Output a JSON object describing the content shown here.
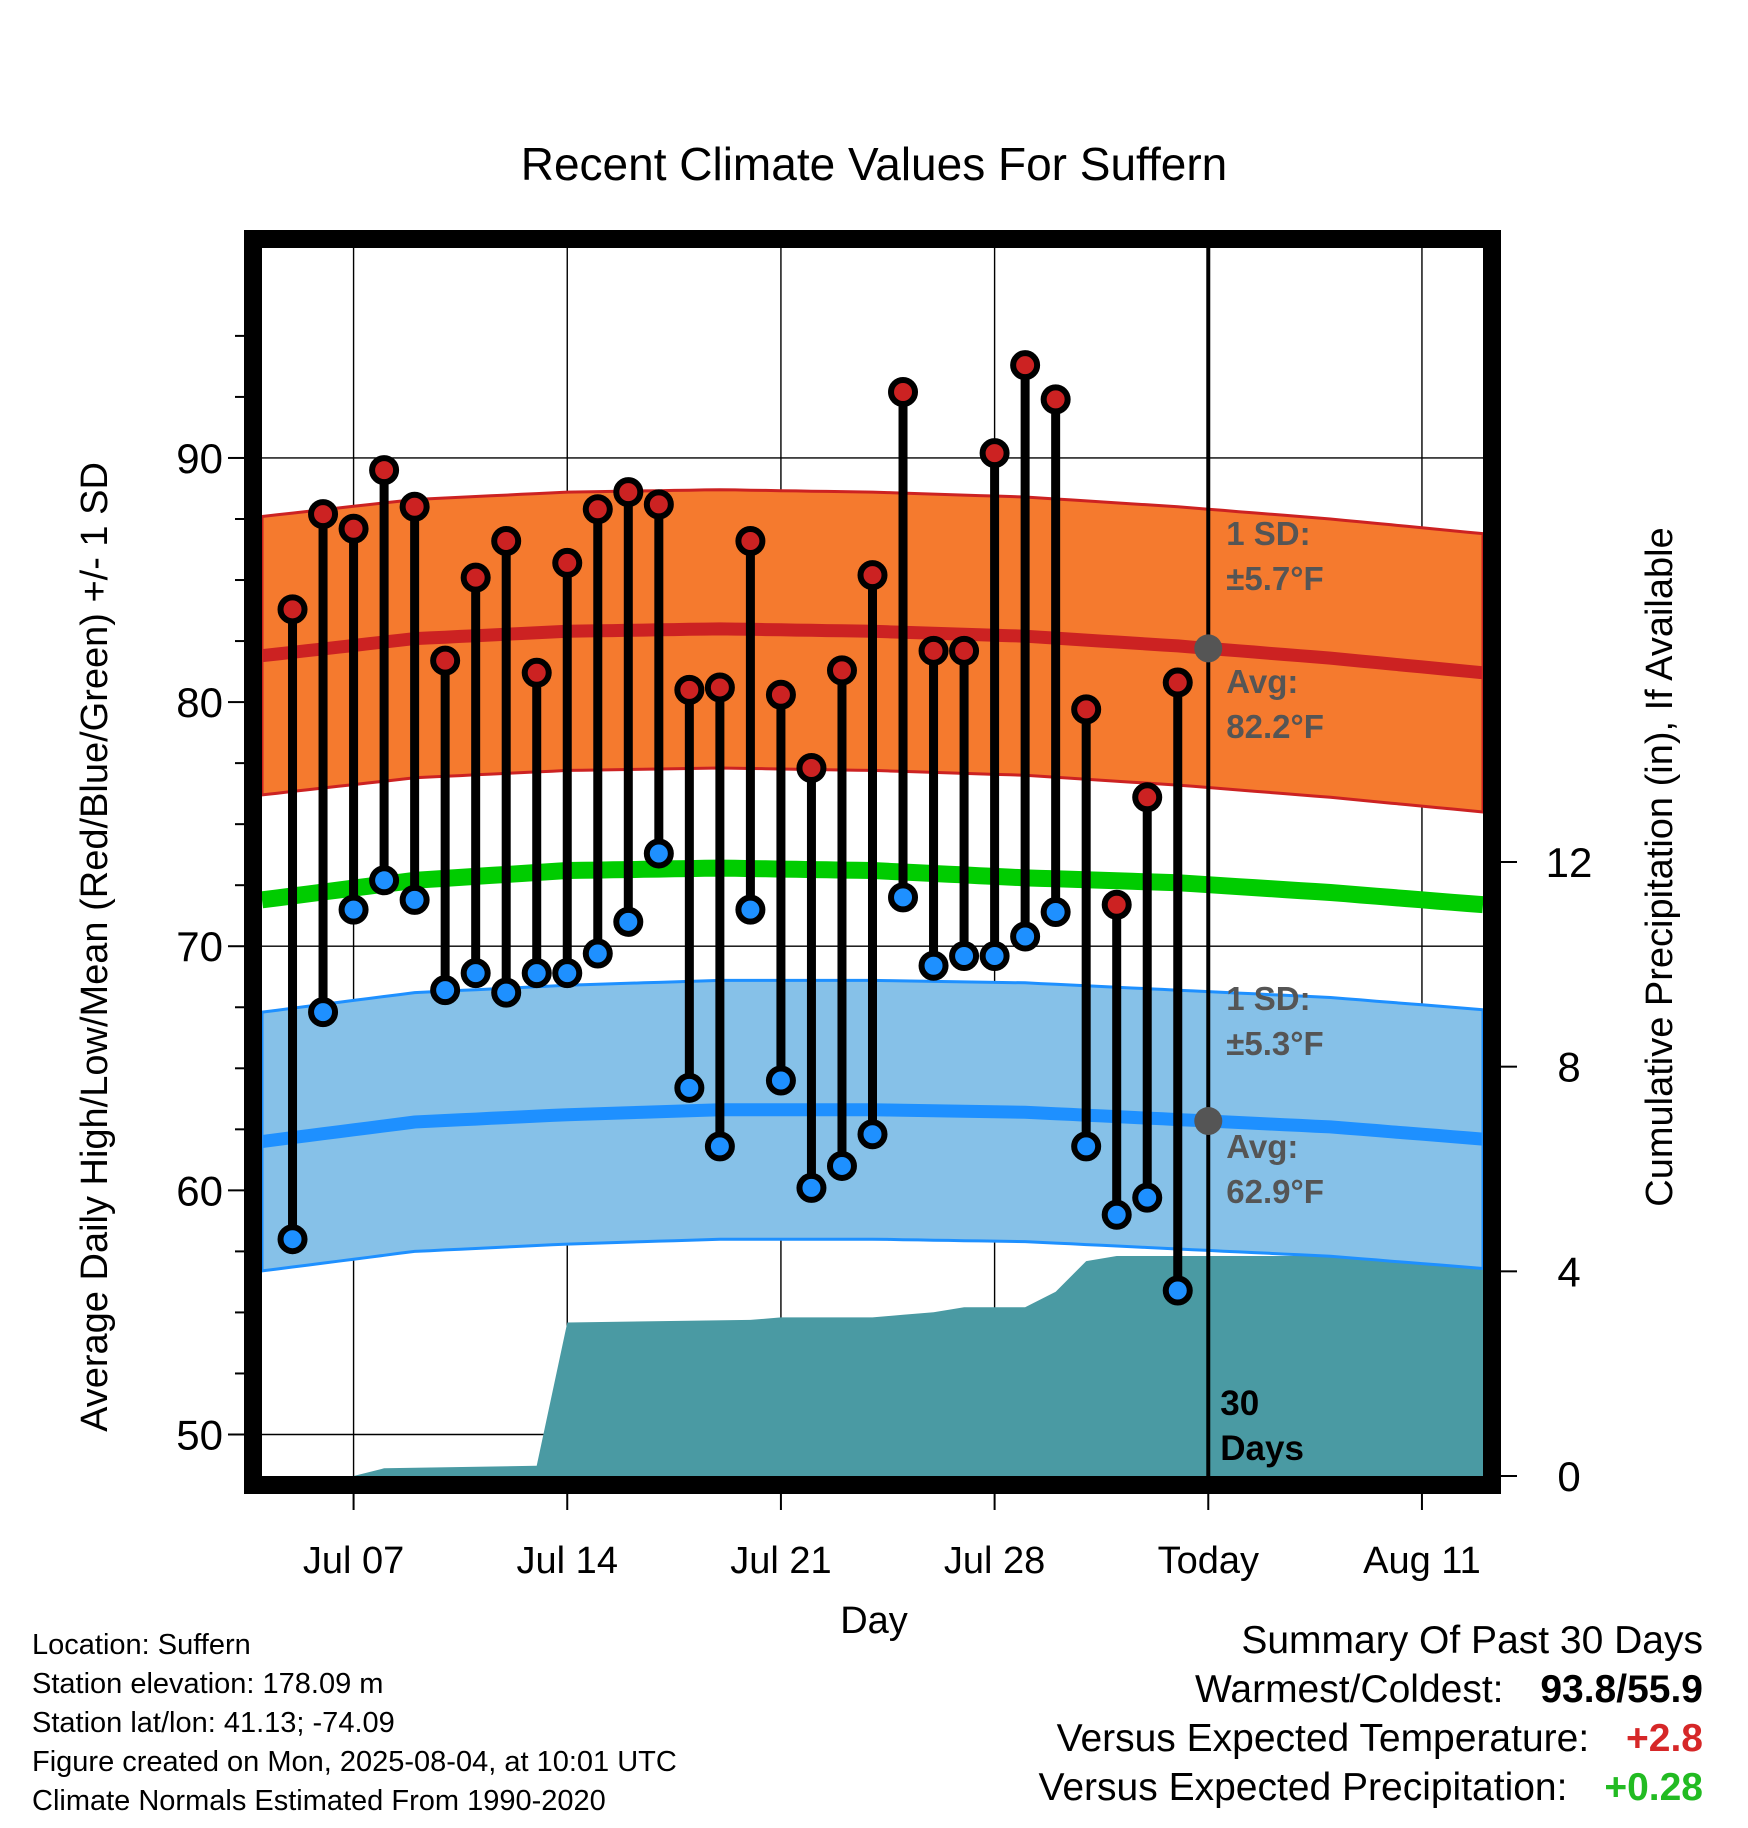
{
  "chart_data": {
    "type": "line",
    "title": "Recent Climate Values For Suffern",
    "xlabel": "Day",
    "ylabel": "Average Daily High/Low/Mean (Red/Blue/Green) +/- 1 SD",
    "y2label": "Cumulative Precipitation (in), If Available",
    "x_tick_labels": [
      "Jul 07",
      "Jul 14",
      "Jul 21",
      "Jul 28",
      "Today",
      "Aug 11"
    ],
    "y_ticks": [
      50,
      60,
      70,
      80,
      90
    ],
    "y2_ticks": [
      0,
      4,
      8,
      12
    ],
    "ylim": [
      48.3,
      98.6
    ],
    "y2lim": [
      0,
      24
    ],
    "xlim": [
      "Jul 04",
      "Aug 13"
    ],
    "grid": true,
    "dates": [
      "Jul 05",
      "Jul 06",
      "Jul 07",
      "Jul 08",
      "Jul 09",
      "Jul 10",
      "Jul 11",
      "Jul 12",
      "Jul 13",
      "Jul 14",
      "Jul 15",
      "Jul 16",
      "Jul 17",
      "Jul 18",
      "Jul 19",
      "Jul 20",
      "Jul 21",
      "Jul 22",
      "Jul 23",
      "Jul 24",
      "Jul 25",
      "Jul 26",
      "Jul 27",
      "Jul 28",
      "Jul 29",
      "Jul 30",
      "Jul 31",
      "Aug 01",
      "Aug 02",
      "Aug 03"
    ],
    "daily_high": [
      83.8,
      87.7,
      87.1,
      89.5,
      88.0,
      81.7,
      85.1,
      86.6,
      81.2,
      85.7,
      87.9,
      88.6,
      88.1,
      80.5,
      80.6,
      86.6,
      80.3,
      77.3,
      81.3,
      85.2,
      92.7,
      82.1,
      82.1,
      90.2,
      93.8,
      92.4,
      79.7,
      71.7,
      76.1,
      80.8
    ],
    "daily_low": [
      58.0,
      67.3,
      71.5,
      72.7,
      71.9,
      68.2,
      68.9,
      68.1,
      68.9,
      68.9,
      69.7,
      71.0,
      73.8,
      64.2,
      61.8,
      71.5,
      64.5,
      60.1,
      61.0,
      62.3,
      72.0,
      69.2,
      69.6,
      69.6,
      70.4,
      71.4,
      61.8,
      59.0,
      59.7,
      55.9
    ],
    "normals_dates": [
      "Jul 04",
      "Jul 09",
      "Jul 14",
      "Jul 19",
      "Jul 24",
      "Jul 29",
      "Aug 03",
      "Aug 08",
      "Aug 13"
    ],
    "normal_high": [
      81.9,
      82.6,
      82.9,
      83.0,
      82.9,
      82.7,
      82.3,
      81.8,
      81.2
    ],
    "normal_high_sd": 5.7,
    "normal_mean": [
      71.9,
      72.7,
      73.1,
      73.2,
      73.1,
      72.8,
      72.6,
      72.2,
      71.7
    ],
    "normal_low": [
      62.0,
      62.8,
      63.1,
      63.3,
      63.3,
      63.2,
      62.9,
      62.6,
      62.1
    ],
    "normal_low_sd": 5.3,
    "precip_dates": [
      "Jul 06",
      "Jul 07",
      "Jul 08",
      "Jul 13",
      "Jul 14",
      "Jul 20",
      "Jul 21",
      "Jul 24",
      "Jul 25",
      "Jul 26",
      "Jul 27",
      "Jul 28",
      "Jul 29",
      "Jul 30",
      "Jul 31",
      "Aug 01",
      "Aug 13"
    ],
    "cumulative_precip": [
      0.0,
      0.0,
      0.15,
      0.2,
      3.0,
      3.05,
      3.1,
      3.1,
      3.15,
      3.2,
      3.3,
      3.3,
      3.3,
      3.6,
      4.2,
      4.3,
      4.3
    ],
    "annotations": {
      "high_sd": "1 SD:",
      "high_sd_value": "±5.7°F",
      "high_avg": "Avg:",
      "high_avg_value": "82.2°F",
      "low_sd": "1 SD:",
      "low_sd_value": "±5.3°F",
      "low_avg": "Avg:",
      "low_avg_value": "62.9°F",
      "window_count": "30",
      "window_unit": "Days"
    },
    "colors": {
      "high": "#cc2222",
      "high_band": "#f57a2e",
      "mean": "#00cc00",
      "low": "#1e90ff",
      "low_band": "#86c1e8",
      "precip": "#4a9aa3",
      "annotation": "#555555"
    }
  },
  "info": {
    "location": "Location: Suffern",
    "elevation": "Station elevation: 178.09 m",
    "latlon": "Station lat/lon: 41.13; -74.09",
    "created": "Figure created on Mon, 2025-08-04, at 10:01 UTC",
    "normals": "Climate Normals Estimated From 1990-2020"
  },
  "summary": {
    "heading": "Summary Of Past 30 Days",
    "warm_cold_label": "Warmest/Coldest:",
    "warmest": "93.8",
    "sep": "/",
    "coldest": "55.9",
    "temp_label": "Versus Expected Temperature:",
    "temp_value": "+2.8",
    "temp_color": "#d62728",
    "precip_label": "Versus Expected Precipitation:",
    "precip_value": "+0.28",
    "precip_color": "#22bb22"
  }
}
